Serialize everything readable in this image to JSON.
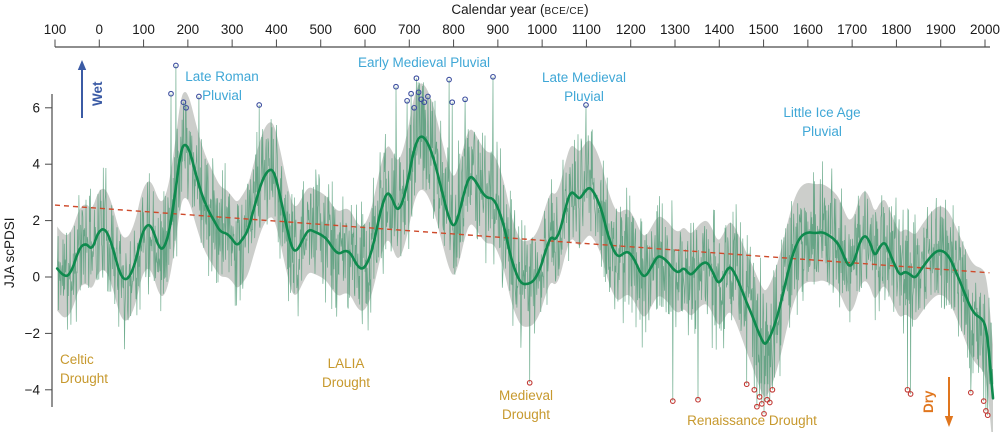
{
  "title": {
    "prefix": "Calendar year (",
    "era": "BCE/CE",
    "suffix": ")"
  },
  "y_axis_label": "JJA scPDSI",
  "annotations": {
    "late_roman": {
      "line1": "Late Roman",
      "line2": "Pluvial"
    },
    "early_medieval": {
      "line1": "Early Medieval Pluvial"
    },
    "late_medieval": {
      "line1": "Late Medieval",
      "line2": "Pluvial"
    },
    "little_ice_age": {
      "line1": "Little Ice Age",
      "line2": "Pluvial"
    },
    "celtic": {
      "line1": "Celtic",
      "line2": "Drought"
    },
    "lalia": {
      "line1": "LALIA",
      "line2": "Drought"
    },
    "medieval": {
      "line1": "Medieval",
      "line2": "Drought"
    },
    "renaissance": {
      "line1": "Renaissance Drought"
    },
    "wet_arrow_label": "Wet",
    "dry_arrow_label": "Dry"
  },
  "colors": {
    "smoothed_line": "#0F8A4E",
    "annual_line": "#4E9A74",
    "uncertainty_band": "#C8CAC7",
    "trend_line": "#CE4A2B",
    "wet_extreme_marker": "#3D4F9F",
    "dry_extreme_marker": "#C23A35",
    "pluvial_label": "#3FA7D6",
    "drought_label": "#C7992E",
    "wet_arrow": "#3B5BA5",
    "dry_arrow": "#E0761E",
    "axis": "#4a4a4a",
    "tick_text": "#1a1a1a"
  },
  "chart_data": {
    "type": "line",
    "x_axis": {
      "label": "Calendar year (BCE/CE)",
      "range": [
        -100,
        2020
      ],
      "ticks": [
        -100,
        0,
        100,
        200,
        300,
        400,
        500,
        600,
        700,
        800,
        900,
        1000,
        1100,
        1200,
        1300,
        1400,
        1500,
        1600,
        1700,
        1800,
        1900,
        2000
      ],
      "tick_labels": [
        "100",
        "0",
        "100",
        "200",
        "300",
        "400",
        "500",
        "600",
        "700",
        "800",
        "900",
        "1000",
        "1100",
        "1200",
        "1300",
        "1400",
        "1500",
        "1600",
        "1700",
        "1800",
        "1900",
        "2000"
      ]
    },
    "y_axis": {
      "label": "JJA scPDSI",
      "range": [
        -4.9,
        7.6
      ],
      "ticks": [
        6,
        4,
        2,
        0,
        -2,
        -4
      ],
      "tick_labels": [
        "6",
        "4",
        "2",
        "0",
        "−2",
        "−4"
      ]
    },
    "grid": false,
    "legend": "none",
    "smoothed_series": [
      [
        -95,
        0.3
      ],
      [
        -78,
        -0.05
      ],
      [
        -62,
        0.2
      ],
      [
        -45,
        1.05
      ],
      [
        -30,
        1.2
      ],
      [
        -16,
        0.95
      ],
      [
        -3,
        1.6
      ],
      [
        13,
        1.75
      ],
      [
        29,
        1.15
      ],
      [
        47,
        0.05
      ],
      [
        63,
        -0.15
      ],
      [
        81,
        0.45
      ],
      [
        96,
        1.55
      ],
      [
        110,
        1.9
      ],
      [
        121,
        1.7
      ],
      [
        133,
        1.1
      ],
      [
        144,
        0.95
      ],
      [
        157,
        1.5
      ],
      [
        171,
        2.9
      ],
      [
        184,
        4.5
      ],
      [
        194,
        4.75
      ],
      [
        205,
        4.45
      ],
      [
        218,
        3.65
      ],
      [
        232,
        2.9
      ],
      [
        245,
        2.4
      ],
      [
        259,
        2.0
      ],
      [
        273,
        1.6
      ],
      [
        288,
        1.55
      ],
      [
        300,
        1.35
      ],
      [
        311,
        1.1
      ],
      [
        324,
        1.35
      ],
      [
        336,
        1.65
      ],
      [
        352,
        2.6
      ],
      [
        367,
        3.4
      ],
      [
        381,
        3.8
      ],
      [
        394,
        3.8
      ],
      [
        408,
        2.9
      ],
      [
        422,
        1.85
      ],
      [
        435,
        1.0
      ],
      [
        446,
        0.9
      ],
      [
        460,
        1.35
      ],
      [
        473,
        1.7
      ],
      [
        487,
        1.6
      ],
      [
        501,
        1.5
      ],
      [
        514,
        1.35
      ],
      [
        528,
        1.0
      ],
      [
        541,
        0.8
      ],
      [
        555,
        0.95
      ],
      [
        568,
        0.85
      ],
      [
        582,
        0.4
      ],
      [
        595,
        0.25
      ],
      [
        609,
        0.6
      ],
      [
        622,
        1.35
      ],
      [
        636,
        2.4
      ],
      [
        650,
        3.05
      ],
      [
        661,
        2.8
      ],
      [
        672,
        2.35
      ],
      [
        683,
        2.55
      ],
      [
        697,
        3.4
      ],
      [
        710,
        4.5
      ],
      [
        722,
        5.0
      ],
      [
        735,
        4.95
      ],
      [
        749,
        4.5
      ],
      [
        762,
        3.8
      ],
      [
        776,
        2.9
      ],
      [
        790,
        2.05
      ],
      [
        801,
        1.75
      ],
      [
        812,
        2.2
      ],
      [
        826,
        3.15
      ],
      [
        837,
        3.6
      ],
      [
        848,
        3.45
      ],
      [
        862,
        3.05
      ],
      [
        875,
        2.8
      ],
      [
        889,
        2.8
      ],
      [
        902,
        2.4
      ],
      [
        916,
        1.7
      ],
      [
        929,
        0.7
      ],
      [
        943,
        0.05
      ],
      [
        954,
        -0.25
      ],
      [
        968,
        -0.25
      ],
      [
        981,
        -0.15
      ],
      [
        995,
        0.25
      ],
      [
        1008,
        0.95
      ],
      [
        1020,
        1.45
      ],
      [
        1029,
        1.3
      ],
      [
        1040,
        1.6
      ],
      [
        1054,
        2.55
      ],
      [
        1065,
        3.05
      ],
      [
        1076,
        2.9
      ],
      [
        1085,
        2.75
      ],
      [
        1097,
        3.05
      ],
      [
        1108,
        3.2
      ],
      [
        1121,
        2.9
      ],
      [
        1135,
        2.35
      ],
      [
        1148,
        1.5
      ],
      [
        1162,
        0.9
      ],
      [
        1173,
        0.7
      ],
      [
        1184,
        0.85
      ],
      [
        1196,
        0.9
      ],
      [
        1209,
        0.6
      ],
      [
        1223,
        0.1
      ],
      [
        1234,
        0.0
      ],
      [
        1248,
        0.4
      ],
      [
        1261,
        0.75
      ],
      [
        1272,
        0.7
      ],
      [
        1286,
        0.5
      ],
      [
        1297,
        0.25
      ],
      [
        1309,
        0.15
      ],
      [
        1320,
        0.35
      ],
      [
        1334,
        0.05
      ],
      [
        1345,
        0.2
      ],
      [
        1358,
        0.45
      ],
      [
        1372,
        0.55
      ],
      [
        1385,
        0.2
      ],
      [
        1397,
        -0.25
      ],
      [
        1408,
        -0.05
      ],
      [
        1422,
        0.4
      ],
      [
        1433,
        0.2
      ],
      [
        1447,
        -0.3
      ],
      [
        1460,
        -0.85
      ],
      [
        1474,
        -1.35
      ],
      [
        1487,
        -1.9
      ],
      [
        1498,
        -2.3
      ],
      [
        1505,
        -2.4
      ],
      [
        1517,
        -2.05
      ],
      [
        1530,
        -1.45
      ],
      [
        1544,
        -0.6
      ],
      [
        1557,
        0.3
      ],
      [
        1571,
        1.05
      ],
      [
        1584,
        1.45
      ],
      [
        1600,
        1.6
      ],
      [
        1616,
        1.55
      ],
      [
        1632,
        1.6
      ],
      [
        1645,
        1.5
      ],
      [
        1659,
        1.35
      ],
      [
        1672,
        1.1
      ],
      [
        1686,
        0.55
      ],
      [
        1695,
        0.35
      ],
      [
        1706,
        0.6
      ],
      [
        1717,
        1.25
      ],
      [
        1729,
        1.5
      ],
      [
        1740,
        1.25
      ],
      [
        1751,
        0.7
      ],
      [
        1763,
        1.1
      ],
      [
        1774,
        1.25
      ],
      [
        1785,
        0.85
      ],
      [
        1797,
        0.4
      ],
      [
        1808,
        0.05
      ],
      [
        1819,
        0.2
      ],
      [
        1830,
        0.1
      ],
      [
        1842,
        -0.05
      ],
      [
        1853,
        0.2
      ],
      [
        1864,
        0.45
      ],
      [
        1876,
        0.7
      ],
      [
        1889,
        0.9
      ],
      [
        1900,
        0.95
      ],
      [
        1912,
        0.85
      ],
      [
        1923,
        0.6
      ],
      [
        1934,
        0.2
      ],
      [
        1946,
        -0.25
      ],
      [
        1957,
        -0.7
      ],
      [
        1968,
        -1.1
      ],
      [
        1979,
        -1.35
      ],
      [
        1991,
        -1.45
      ],
      [
        2000,
        -1.65
      ],
      [
        2006,
        -2.2
      ],
      [
        2012,
        -3.2
      ],
      [
        2018,
        -4.3
      ]
    ],
    "band_halfwidth": [
      [
        -100,
        1.5
      ],
      [
        -50,
        1.4
      ],
      [
        100,
        1.5
      ],
      [
        190,
        1.9
      ],
      [
        300,
        1.5
      ],
      [
        380,
        1.7
      ],
      [
        480,
        1.5
      ],
      [
        600,
        1.5
      ],
      [
        722,
        1.9
      ],
      [
        830,
        1.7
      ],
      [
        950,
        1.5
      ],
      [
        1100,
        1.7
      ],
      [
        1250,
        1.4
      ],
      [
        1400,
        1.5
      ],
      [
        1500,
        1.9
      ],
      [
        1640,
        1.7
      ],
      [
        1800,
        1.5
      ],
      [
        1950,
        1.6
      ],
      [
        2018,
        1.9
      ]
    ],
    "annual_noise": {
      "seed": 11,
      "amplitude": [
        [
          -100,
          1.5
        ],
        [
          0,
          1.5
        ],
        [
          150,
          1.7
        ],
        [
          250,
          1.6
        ],
        [
          400,
          1.6
        ],
        [
          600,
          1.6
        ],
        [
          750,
          1.7
        ],
        [
          900,
          1.6
        ],
        [
          1100,
          1.6
        ],
        [
          1300,
          1.7
        ],
        [
          1500,
          1.8
        ],
        [
          1700,
          1.5
        ],
        [
          1900,
          1.5
        ],
        [
          2020,
          1.6
        ]
      ],
      "clamp": [
        -3.8,
        6.9
      ]
    },
    "trend_line": {
      "start": [
        -100,
        2.55
      ],
      "end": [
        2010,
        0.15
      ],
      "style": "dashed"
    },
    "wet_extremes": [
      [
        162,
        6.5
      ],
      [
        173,
        7.5
      ],
      [
        190,
        6.2
      ],
      [
        196,
        6.0
      ],
      [
        225,
        6.4
      ],
      [
        361,
        6.1
      ],
      [
        670,
        6.75
      ],
      [
        695,
        6.25
      ],
      [
        704,
        6.5
      ],
      [
        711,
        6.0
      ],
      [
        716,
        7.05
      ],
      [
        721,
        6.55
      ],
      [
        727,
        6.3
      ],
      [
        734,
        6.2
      ],
      [
        742,
        6.4
      ],
      [
        790,
        7.0
      ],
      [
        797,
        6.2
      ],
      [
        826,
        6.3
      ],
      [
        889,
        7.1
      ],
      [
        1099,
        6.1
      ]
    ],
    "dry_extremes": [
      [
        972,
        -3.75
      ],
      [
        1295,
        -4.4
      ],
      [
        1352,
        -4.35
      ],
      [
        1462,
        -3.8
      ],
      [
        1479,
        -4.0
      ],
      [
        1485,
        -4.6
      ],
      [
        1491,
        -4.25
      ],
      [
        1496,
        -4.5
      ],
      [
        1501,
        -4.85
      ],
      [
        1508,
        -4.35
      ],
      [
        1514,
        -4.45
      ],
      [
        1520,
        -4.0
      ],
      [
        1825,
        -4.0
      ],
      [
        1832,
        -4.15
      ],
      [
        1968,
        -4.1
      ],
      [
        1997,
        -4.4
      ],
      [
        2002,
        -4.75
      ],
      [
        2006,
        -4.9
      ]
    ]
  }
}
